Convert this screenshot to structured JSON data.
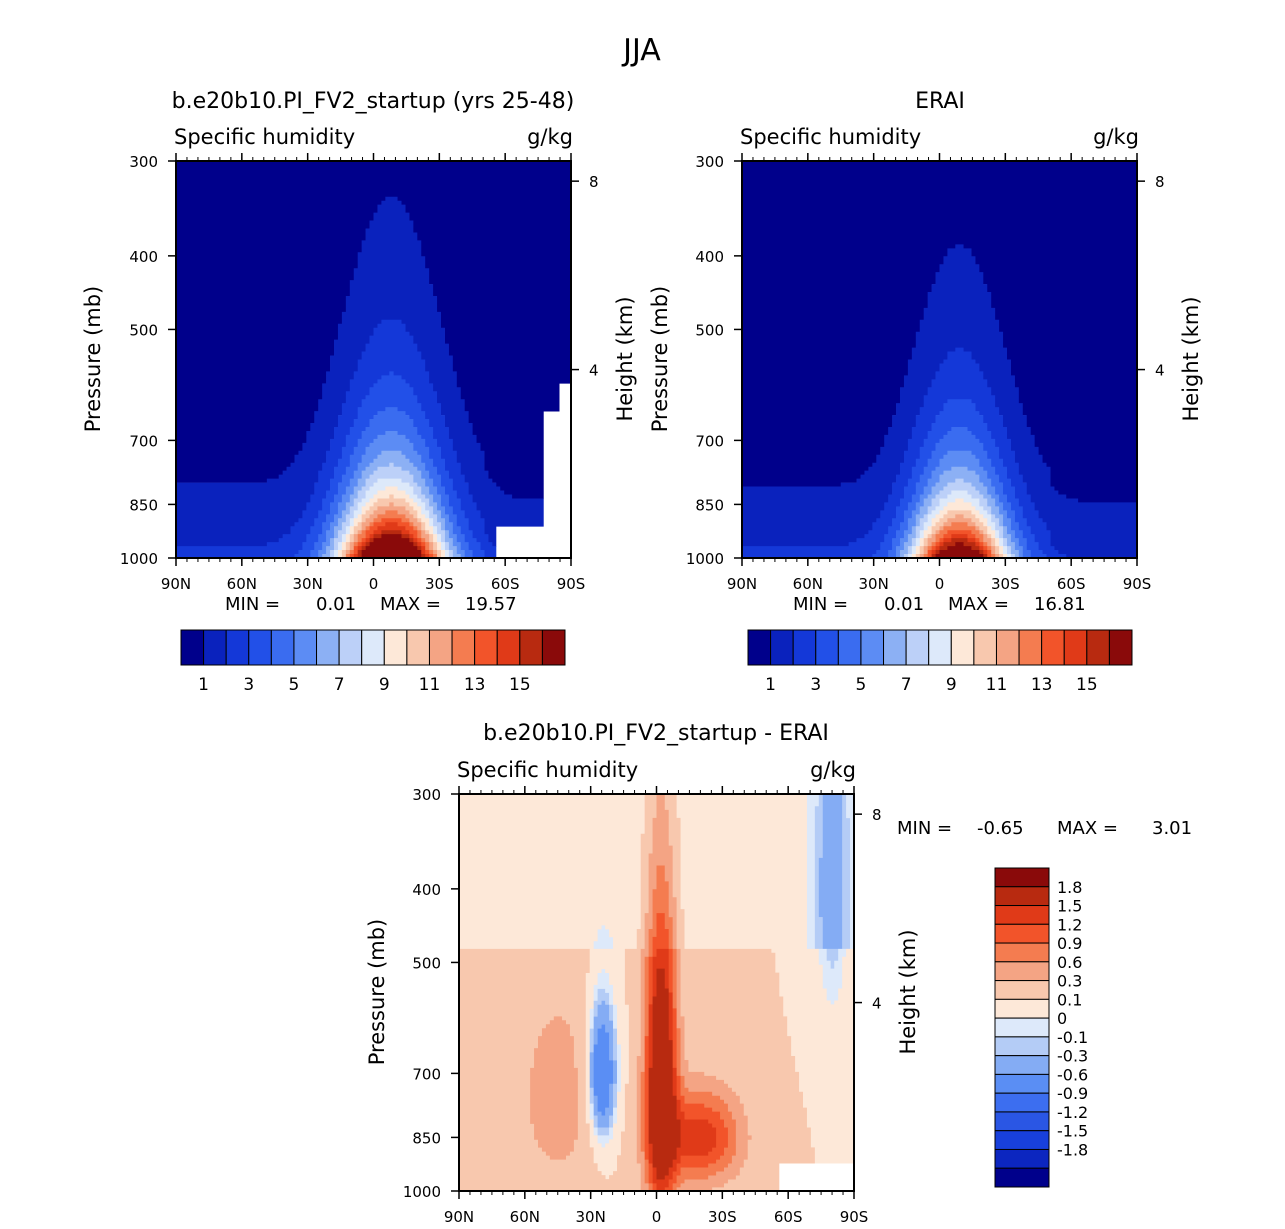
{
  "page": {
    "title": "JJA"
  },
  "colors": {
    "abs_scale": [
      "#00008b",
      "#0a22bd",
      "#1438d8",
      "#2250e8",
      "#3a6cf0",
      "#5c8cf4",
      "#8cb0f4",
      "#bcd0f8",
      "#dde9fa",
      "#fde8d8",
      "#f8c8ae",
      "#f4a484",
      "#f47c50",
      "#f2542a",
      "#e03a18",
      "#b82a10",
      "#8a0a0a"
    ],
    "diff_scale": [
      "#00008b",
      "#0c26c0",
      "#1840dc",
      "#2a56e4",
      "#3c6ef0",
      "#5a8ef4",
      "#84acf4",
      "#b4ccf6",
      "#dde9fa",
      "#fde8d8",
      "#f8c8ae",
      "#f4a484",
      "#f47c50",
      "#f2542a",
      "#e03a18",
      "#b82a10",
      "#8a0a0a"
    ]
  },
  "chart_data": [
    {
      "id": "model",
      "type": "heatmap",
      "title": "b.e20b10.PI_FV2_startup (yrs 25-48)",
      "left_string": "Specific humidity",
      "right_string": "g/kg",
      "ylabel": "Pressure (mb)",
      "ylabel_right": "Height (km)",
      "xticks": [
        "90N",
        "60N",
        "30N",
        "0",
        "30S",
        "60S",
        "90S"
      ],
      "yticks": [
        "300",
        "400",
        "500",
        "700",
        "850",
        "1000"
      ],
      "yticks_right": [
        "8",
        "4"
      ],
      "minmax": {
        "min_label": "MIN =",
        "min": "0.01",
        "max_label": "MAX =",
        "max": "19.57"
      },
      "min": 0.01,
      "max": 19.57,
      "colorbar_labels": [
        "1",
        "3",
        "5",
        "7",
        "9",
        "11",
        "13",
        "15"
      ],
      "levels": [
        1,
        2,
        3,
        4,
        5,
        6,
        7,
        8,
        9,
        10,
        11,
        12,
        13,
        14,
        15,
        16
      ],
      "missing_region": "southern polar lower levels"
    },
    {
      "id": "obs",
      "type": "heatmap",
      "title": "ERAI",
      "left_string": "Specific humidity",
      "right_string": "g/kg",
      "ylabel": "Pressure (mb)",
      "ylabel_right": "Height (km)",
      "xticks": [
        "90N",
        "60N",
        "30N",
        "0",
        "30S",
        "60S",
        "90S"
      ],
      "yticks": [
        "300",
        "400",
        "500",
        "700",
        "850",
        "1000"
      ],
      "yticks_right": [
        "8",
        "4"
      ],
      "minmax": {
        "min_label": "MIN =",
        "min": "0.01",
        "max_label": "MAX =",
        "max": "16.81"
      },
      "min": 0.01,
      "max": 16.81,
      "colorbar_labels": [
        "1",
        "3",
        "5",
        "7",
        "9",
        "11",
        "13",
        "15"
      ],
      "levels": [
        1,
        2,
        3,
        4,
        5,
        6,
        7,
        8,
        9,
        10,
        11,
        12,
        13,
        14,
        15,
        16
      ]
    },
    {
      "id": "diff",
      "type": "heatmap",
      "title": "b.e20b10.PI_FV2_startup - ERAI",
      "left_string": "Specific humidity",
      "right_string": "g/kg",
      "ylabel": "Pressure (mb)",
      "ylabel_right": "Height (km)",
      "xticks": [
        "90N",
        "60N",
        "30N",
        "0",
        "30S",
        "60S",
        "90S"
      ],
      "yticks": [
        "300",
        "400",
        "500",
        "700",
        "850",
        "1000"
      ],
      "yticks_right": [
        "8",
        "4"
      ],
      "minmax": {
        "min_label": "MIN =",
        "min": "-0.65",
        "max_label": "MAX =",
        "max": "3.01"
      },
      "min": -0.65,
      "max": 3.01,
      "colorbar_labels": [
        "1.8",
        "1.5",
        "1.2",
        "0.9",
        "0.6",
        "0.3",
        "0.1",
        "0",
        "-0.1",
        "-0.3",
        "-0.6",
        "-0.9",
        "-1.2",
        "-1.5",
        "-1.8"
      ],
      "levels": [
        -1.8,
        -1.5,
        -1.2,
        -0.9,
        -0.6,
        -0.3,
        -0.1,
        0,
        0.1,
        0.3,
        0.6,
        0.9,
        1.2,
        1.5,
        1.8
      ]
    }
  ]
}
